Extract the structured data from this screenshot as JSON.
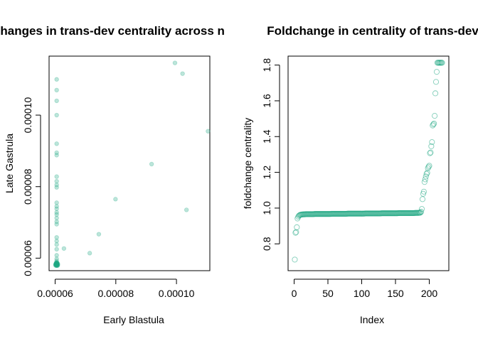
{
  "colors": {
    "point_fill": "#21A883",
    "point_alpha": 0.3,
    "axis": "#000000"
  },
  "chart_data": [
    {
      "type": "scatter",
      "title": "Changes in trans-dev centrality across n",
      "xlabel": "Early Blastula",
      "ylabel": "Late Gastrula",
      "xlim": [
        5.8e-05,
        0.000111
      ],
      "ylim": [
        5.65e-05,
        0.0001165
      ],
      "x_ticks": [
        6e-05,
        8e-05,
        0.0001
      ],
      "x_tick_labels": [
        "0.00006",
        "0.00008",
        "0.00010"
      ],
      "y_ticks": [
        6e-05,
        8e-05,
        0.0001
      ],
      "y_tick_labels": [
        "0.00006",
        "0.00008",
        "0.00010"
      ],
      "marker": "filled-circle",
      "points": [
        [
          6.05e-05,
          0.00011
        ],
        [
          6.05e-05,
          0.000107
        ],
        [
          6.05e-05,
          0.000104
        ],
        [
          6.05e-05,
          0.0001
        ],
        [
          6.05e-05,
          9.2e-05
        ],
        [
          6.05e-05,
          8.95e-05
        ],
        [
          6.05e-05,
          8.88e-05
        ],
        [
          6.05e-05,
          8.28e-05
        ],
        [
          6.05e-05,
          8.15e-05
        ],
        [
          6.05e-05,
          8.05e-05
        ],
        [
          6.05e-05,
          7.98e-05
        ],
        [
          6.05e-05,
          7.55e-05
        ],
        [
          6.05e-05,
          7.45e-05
        ],
        [
          6.05e-05,
          7.38e-05
        ],
        [
          6.05e-05,
          7.28e-05
        ],
        [
          6.05e-05,
          7.22e-05
        ],
        [
          6.05e-05,
          7.12e-05
        ],
        [
          6.05e-05,
          7.02e-05
        ],
        [
          6.05e-05,
          6.95e-05
        ],
        [
          6.05e-05,
          6.58e-05
        ],
        [
          6.05e-05,
          6.48e-05
        ],
        [
          6.05e-05,
          6.38e-05
        ],
        [
          6.05e-05,
          6.25e-05
        ],
        [
          6.05e-05,
          6.08e-05
        ],
        [
          6.05e-05,
          5.98e-05
        ],
        [
          6.05e-05,
          5.92e-05
        ],
        [
          6.05e-05,
          5.88e-05
        ],
        [
          6.05e-05,
          5.85e-05
        ],
        [
          6.05e-05,
          5.83e-05
        ],
        [
          6.05e-05,
          5.82e-05
        ],
        [
          6.05e-05,
          5.81e-05
        ],
        [
          6.02e-05,
          5.84e-05
        ],
        [
          6.08e-05,
          5.82e-05
        ],
        [
          6.03e-05,
          5.8e-05
        ],
        [
          6.07e-05,
          5.86e-05
        ],
        [
          6.04e-05,
          5.79e-05
        ],
        [
          6.06e-05,
          5.83e-05
        ],
        [
          6.01e-05,
          5.82e-05
        ],
        [
          6.09e-05,
          5.81e-05
        ],
        [
          6.03e-05,
          5.85e-05
        ],
        [
          6.06e-05,
          5.84e-05
        ],
        [
          6.04e-05,
          5.87e-05
        ],
        [
          6.08e-05,
          5.79e-05
        ],
        [
          6.05e-05,
          5.86e-05
        ],
        [
          6.02e-05,
          5.82e-05
        ],
        [
          6.07e-05,
          5.8e-05
        ],
        [
          6.04e-05,
          5.83e-05
        ],
        [
          6.06e-05,
          5.81e-05
        ],
        [
          6.03e-05,
          5.86e-05
        ],
        [
          6.05e-05,
          5.79e-05
        ],
        [
          6.09e-05,
          5.84e-05
        ],
        [
          6.01e-05,
          5.8e-05
        ],
        [
          6.06e-05,
          5.87e-05
        ],
        [
          6.04e-05,
          5.82e-05
        ],
        [
          6.07e-05,
          5.85e-05
        ],
        [
          6.03e-05,
          5.83e-05
        ],
        [
          6.29e-05,
          6.27e-05
        ],
        [
          7.14e-05,
          6.14e-05
        ],
        [
          7.44e-05,
          6.67e-05
        ],
        [
          7.99e-05,
          7.65e-05
        ],
        [
          9.18e-05,
          8.63e-05
        ],
        [
          9.95e-05,
          0.0001146
        ],
        [
          0.000102,
          0.0001116
        ],
        [
          0.0001033,
          7.35e-05
        ],
        [
          0.0001104,
          9.55e-05
        ]
      ]
    },
    {
      "type": "scatter",
      "title": "Foldchange in centrality of trans-dev",
      "xlabel": "Index",
      "ylabel": "foldchange centrality",
      "xlim": [
        0,
        220
      ],
      "ylim": [
        0.65,
        1.85
      ],
      "x_ticks": [
        0,
        50,
        100,
        150,
        200
      ],
      "x_tick_labels": [
        "0",
        "50",
        "100",
        "150",
        "200"
      ],
      "y_ticks": [
        0.8,
        1.0,
        1.2,
        1.4,
        1.6,
        1.8
      ],
      "y_tick_labels": [
        "0.8",
        "1.0",
        "1.2",
        "1.4",
        "1.6",
        "1.8"
      ],
      "marker": "open-circle",
      "n": 219,
      "values": [
        0.712,
        0.862,
        0.866,
        0.893,
        0.942,
        0.951,
        0.957,
        0.96,
        0.962,
        0.963,
        0.964,
        0.964,
        0.965,
        0.965,
        0.965,
        0.965,
        0.966,
        0.966,
        0.966,
        0.966,
        0.966,
        0.966,
        0.966,
        0.966,
        0.966,
        0.966,
        0.966,
        0.966,
        0.966,
        0.967,
        0.967,
        0.967,
        0.967,
        0.967,
        0.967,
        0.967,
        0.967,
        0.967,
        0.967,
        0.967,
        0.967,
        0.967,
        0.967,
        0.967,
        0.967,
        0.967,
        0.967,
        0.967,
        0.967,
        0.967,
        0.967,
        0.967,
        0.967,
        0.967,
        0.968,
        0.968,
        0.968,
        0.968,
        0.968,
        0.968,
        0.968,
        0.968,
        0.968,
        0.968,
        0.968,
        0.968,
        0.968,
        0.968,
        0.968,
        0.968,
        0.968,
        0.968,
        0.968,
        0.968,
        0.968,
        0.968,
        0.968,
        0.968,
        0.969,
        0.969,
        0.969,
        0.969,
        0.969,
        0.969,
        0.969,
        0.969,
        0.969,
        0.969,
        0.969,
        0.969,
        0.969,
        0.969,
        0.969,
        0.969,
        0.969,
        0.969,
        0.969,
        0.969,
        0.969,
        0.969,
        0.969,
        0.969,
        0.969,
        0.969,
        0.97,
        0.97,
        0.97,
        0.97,
        0.97,
        0.97,
        0.97,
        0.97,
        0.97,
        0.97,
        0.97,
        0.97,
        0.97,
        0.97,
        0.97,
        0.97,
        0.97,
        0.97,
        0.97,
        0.97,
        0.97,
        0.97,
        0.97,
        0.97,
        0.971,
        0.971,
        0.971,
        0.971,
        0.971,
        0.971,
        0.971,
        0.971,
        0.971,
        0.971,
        0.971,
        0.971,
        0.971,
        0.971,
        0.971,
        0.971,
        0.971,
        0.971,
        0.971,
        0.971,
        0.971,
        0.971,
        0.971,
        0.971,
        0.971,
        0.972,
        0.972,
        0.972,
        0.972,
        0.972,
        0.972,
        0.972,
        0.972,
        0.972,
        0.972,
        0.972,
        0.972,
        0.972,
        0.972,
        0.972,
        0.972,
        0.972,
        0.972,
        0.972,
        0.972,
        0.972,
        0.972,
        0.972,
        0.972,
        0.972,
        0.973,
        0.973,
        0.973,
        0.973,
        0.973,
        0.973,
        0.974,
        0.974,
        0.975,
        0.98,
        0.995,
        1.05,
        1.08,
        1.092,
        1.146,
        1.161,
        1.177,
        1.191,
        1.198,
        1.223,
        1.231,
        1.237,
        1.307,
        1.311,
        1.346,
        1.369,
        1.462,
        1.468,
        1.473,
        1.516,
        1.642,
        1.706,
        1.762,
        1.813,
        1.813,
        1.813,
        1.813,
        1.813,
        1.813,
        1.813,
        1.813
      ]
    }
  ]
}
